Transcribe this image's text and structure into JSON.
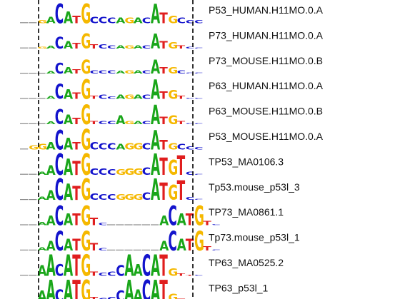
{
  "colors": {
    "A": "#1aa61a",
    "C": "#1414cc",
    "G": "#f5b800",
    "T": "#e01e1e",
    "guide": "#000000"
  },
  "motifs": [
    {
      "label": "P53_HUMAN.H11MO.0.A",
      "seq": "..GACATGCCCAGACATGCCC",
      "heights": [
        0.05,
        0.1,
        0.15,
        0.3,
        0.9,
        0.55,
        0.35,
        0.9,
        0.3,
        0.3,
        0.25,
        0.25,
        0.25,
        0.25,
        0.25,
        0.9,
        0.5,
        0.35,
        0.25,
        0.15,
        0.15
      ]
    },
    {
      "label": "P73_HUMAN.H11MO.0.A",
      "seq": "..GACATGTCCAGACATGTCC",
      "heights": [
        0.03,
        0.05,
        0.08,
        0.12,
        0.55,
        0.35,
        0.25,
        0.7,
        0.2,
        0.2,
        0.15,
        0.15,
        0.15,
        0.15,
        0.15,
        0.7,
        0.35,
        0.3,
        0.15,
        0.08,
        0.05
      ]
    },
    {
      "label": "P73_MOUSE.H11MO.0.B",
      "seq": "...ACATGCCCAGACATGCCC",
      "heights": [
        0.02,
        0.03,
        0.05,
        0.1,
        0.5,
        0.3,
        0.2,
        0.65,
        0.15,
        0.15,
        0.15,
        0.12,
        0.15,
        0.15,
        0.15,
        0.65,
        0.3,
        0.3,
        0.15,
        0.05,
        0.03
      ]
    },
    {
      "label": "P63_HUMAN.H11MO.0.A",
      "seq": "...ACATGTCCAGACATGTCC",
      "heights": [
        0.02,
        0.03,
        0.05,
        0.12,
        0.7,
        0.45,
        0.3,
        0.9,
        0.15,
        0.2,
        0.1,
        0.2,
        0.2,
        0.2,
        0.2,
        0.9,
        0.35,
        0.4,
        0.15,
        0.05,
        0.03
      ]
    },
    {
      "label": "P63_MOUSE.H11MO.0.B",
      "seq": "...ACATGTCCAGACATGTCC",
      "heights": [
        0.02,
        0.03,
        0.05,
        0.12,
        0.7,
        0.45,
        0.3,
        0.9,
        0.15,
        0.15,
        0.15,
        0.4,
        0.15,
        0.15,
        0.15,
        0.9,
        0.35,
        0.4,
        0.15,
        0.05,
        0.03
      ]
    },
    {
      "label": "P53_MOUSE.H11MO.0.A",
      "seq": ".GGACATGCCCAGGCATGCCC",
      "heights": [
        0.05,
        0.2,
        0.25,
        0.35,
        0.9,
        0.55,
        0.35,
        0.95,
        0.35,
        0.3,
        0.3,
        0.25,
        0.3,
        0.3,
        0.3,
        0.9,
        0.45,
        0.3,
        0.25,
        0.15,
        0.1
      ]
    },
    {
      "label": "TP53_MA0106.3",
      "seq": "..AACATGCCCGGGCATGTCC",
      "heights": [
        0.02,
        0.05,
        0.15,
        0.45,
        1.0,
        0.75,
        0.65,
        1.0,
        0.3,
        0.3,
        0.25,
        0.25,
        0.3,
        0.3,
        0.35,
        1.0,
        0.8,
        0.7,
        0.9,
        0.15,
        0.05
      ]
    },
    {
      "label": "Tp53.mouse_p53l_3",
      "seq": "..AACATGCCCGGGCATGTCC",
      "heights": [
        0.02,
        0.05,
        0.15,
        0.45,
        1.0,
        0.75,
        0.65,
        1.0,
        0.3,
        0.25,
        0.25,
        0.25,
        0.25,
        0.25,
        0.35,
        1.0,
        0.8,
        0.7,
        0.9,
        0.12,
        0.05
      ]
    },
    {
      "label": "TP73_MA0861.1",
      "seq": "..AACATGTC......ACATGTC",
      "heights": [
        0.02,
        0.05,
        0.15,
        0.45,
        0.9,
        0.55,
        0.55,
        0.9,
        0.35,
        0.1,
        0.02,
        0.02,
        0.02,
        0.02,
        0.02,
        0.02,
        0.45,
        0.9,
        0.55,
        0.55,
        0.9,
        0.2,
        0.05
      ]
    },
    {
      "label": "Tp73.mouse_p53l_1",
      "seq": "..AACATGTC......ACATGTC",
      "heights": [
        0.02,
        0.05,
        0.15,
        0.45,
        0.9,
        0.55,
        0.55,
        0.9,
        0.35,
        0.1,
        0.02,
        0.02,
        0.02,
        0.02,
        0.02,
        0.02,
        0.45,
        0.9,
        0.55,
        0.55,
        0.9,
        0.2,
        0.05
      ]
    },
    {
      "label": "TP63_MA0525.2",
      "seq": "..AACATGTCCCAACATGTTC",
      "heights": [
        0.02,
        0.15,
        0.5,
        1.0,
        0.55,
        1.0,
        1.0,
        1.0,
        0.2,
        0.15,
        0.2,
        0.5,
        1.0,
        0.55,
        1.0,
        1.0,
        1.0,
        0.35,
        0.1,
        0.05,
        0.02
      ]
    },
    {
      "label": "TP63_p53l_1",
      "seq": "..AACATGTCCCAACATGTTC",
      "heights": [
        0.02,
        0.15,
        0.5,
        1.0,
        0.55,
        1.0,
        1.0,
        1.0,
        0.2,
        0.15,
        0.2,
        0.5,
        1.0,
        0.55,
        1.0,
        1.0,
        1.0,
        0.35,
        0.1,
        0.05,
        0.02
      ]
    }
  ]
}
